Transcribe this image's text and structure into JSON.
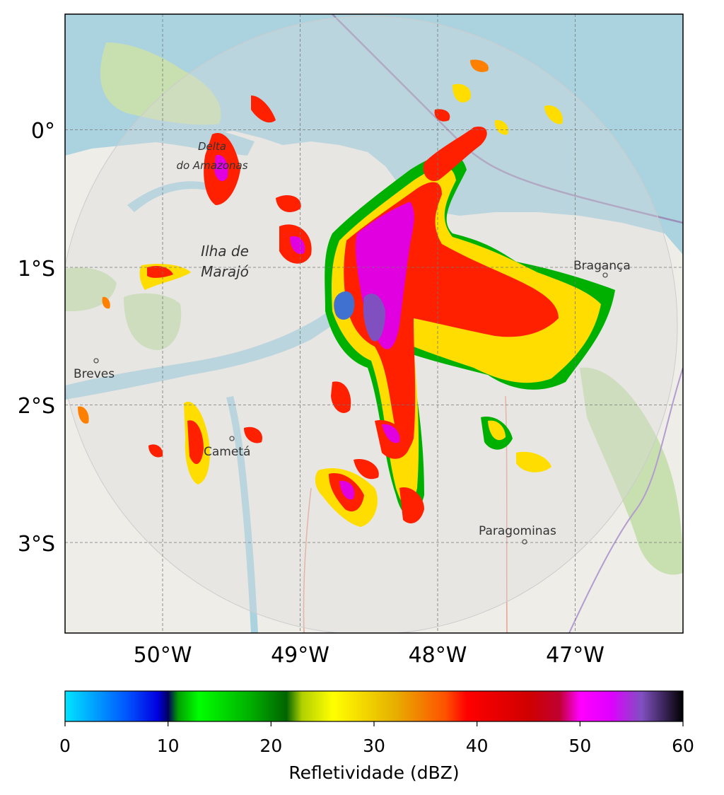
{
  "map": {
    "lat_ticks": [
      {
        "value": 0,
        "label": "0°"
      },
      {
        "value": -1,
        "label": "1°S"
      },
      {
        "value": -2,
        "label": "2°S"
      },
      {
        "value": -3,
        "label": "3°S"
      }
    ],
    "lon_ticks": [
      {
        "value": -50,
        "label": "50°W"
      },
      {
        "value": -49,
        "label": "49°W"
      },
      {
        "value": -48,
        "label": "48°W"
      },
      {
        "value": -47,
        "label": "47°W"
      }
    ],
    "places": {
      "ilha_line1": "Ilha de",
      "ilha_line2": "Marajó",
      "delta_line1": "Delta",
      "delta_line2": "do Amazonas",
      "breves": "Breves",
      "cameta": "Cametá",
      "braganca": "Bragança",
      "paragominas": "Paragominas"
    },
    "colors": {
      "ocean": "#aad3df",
      "land": "#eeede8",
      "forest": "#c8dfb0",
      "radar_range": "#d9d9d9"
    }
  },
  "colorbar": {
    "label": "Refletividade (dBZ)",
    "ticks": [
      "0",
      "10",
      "20",
      "30",
      "40",
      "50",
      "60"
    ],
    "min": 0,
    "max": 60,
    "stops": [
      {
        "v": 0,
        "c": "#00e5ff"
      },
      {
        "v": 6,
        "c": "#0055ff"
      },
      {
        "v": 9,
        "c": "#0000e0"
      },
      {
        "v": 10,
        "c": "#000060"
      },
      {
        "v": 11,
        "c": "#00a000"
      },
      {
        "v": 13,
        "c": "#00ff00"
      },
      {
        "v": 18,
        "c": "#00b000"
      },
      {
        "v": 21.5,
        "c": "#006400"
      },
      {
        "v": 23,
        "c": "#b0d000"
      },
      {
        "v": 26,
        "c": "#ffff00"
      },
      {
        "v": 32,
        "c": "#e6b000"
      },
      {
        "v": 37,
        "c": "#ff5000"
      },
      {
        "v": 39,
        "c": "#ff0000"
      },
      {
        "v": 45,
        "c": "#d00000"
      },
      {
        "v": 48,
        "c": "#c00030"
      },
      {
        "v": 50,
        "c": "#ff00ff"
      },
      {
        "v": 53,
        "c": "#e000ff"
      },
      {
        "v": 56,
        "c": "#8050c0"
      },
      {
        "v": 60,
        "c": "#000000"
      }
    ]
  }
}
